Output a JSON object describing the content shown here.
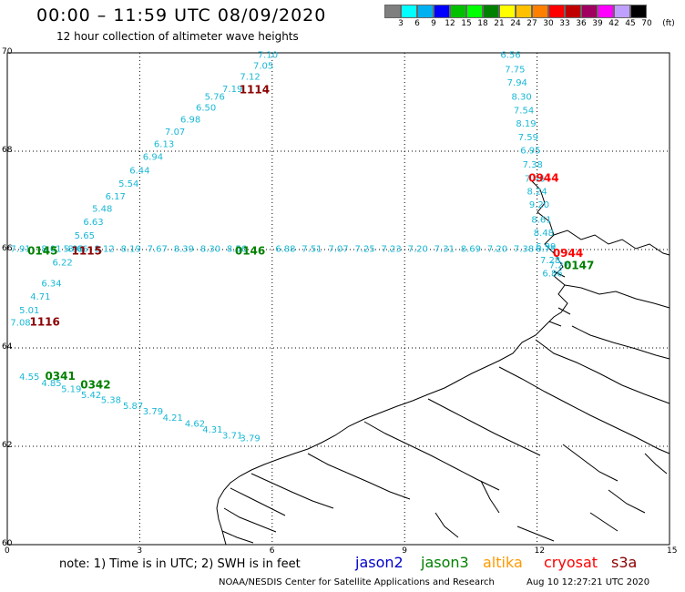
{
  "header": {
    "title": "00:00 – 11:59 UTC 08/09/2020",
    "subtitle": "12 hour collection of altimeter wave heights"
  },
  "color_scale": {
    "unit": "(ft)",
    "swatches": [
      {
        "label": "3",
        "color": "#7f7f7f"
      },
      {
        "label": "6",
        "color": "#00ffff"
      },
      {
        "label": "9",
        "color": "#00b0f0"
      },
      {
        "label": "12",
        "color": "#0000ff"
      },
      {
        "label": "15",
        "color": "#00c000"
      },
      {
        "label": "18",
        "color": "#00ff00"
      },
      {
        "label": "21",
        "color": "#008000"
      },
      {
        "label": "24",
        "color": "#ffff00"
      },
      {
        "label": "27",
        "color": "#ffc000"
      },
      {
        "label": "30",
        "color": "#ff8000"
      },
      {
        "label": "33",
        "color": "#ff0000"
      },
      {
        "label": "36",
        "color": "#c00000"
      },
      {
        "label": "39",
        "color": "#a00060"
      },
      {
        "label": "42",
        "color": "#ff00ff"
      },
      {
        "label": "45",
        "color": "#c0a0ff"
      },
      {
        "label": "70",
        "color": "#000000"
      }
    ]
  },
  "axes": {
    "lon_ticks": [
      "0",
      "3",
      "6",
      "9",
      "12",
      "15"
    ],
    "lat_ticks": [
      "70",
      "68",
      "66",
      "64",
      "62",
      "60"
    ],
    "lon_range": [
      0,
      15
    ],
    "lat_range": [
      60,
      70
    ]
  },
  "colors": {
    "swh": "#19b8d6",
    "jason3_time": "#008000",
    "cryosat_time": "#ff0000",
    "s3a_time": "#8b0000"
  },
  "tracks": {
    "track_a": [
      {
        "lon": 5.9,
        "lat": 69.9,
        "v": "7.10"
      },
      {
        "lon": 5.8,
        "lat": 69.68,
        "v": "7.05"
      },
      {
        "lon": 5.5,
        "lat": 69.45,
        "v": "7.12"
      },
      {
        "lon": 5.1,
        "lat": 69.2,
        "v": "7.19"
      },
      {
        "lon": 4.7,
        "lat": 69.05,
        "v": "5.76"
      },
      {
        "lon": 4.5,
        "lat": 68.82,
        "v": "6.50"
      },
      {
        "lon": 4.15,
        "lat": 68.58,
        "v": "6.98"
      },
      {
        "lon": 3.8,
        "lat": 68.33,
        "v": "7.07"
      },
      {
        "lon": 3.55,
        "lat": 68.08,
        "v": "6.13"
      },
      {
        "lon": 3.3,
        "lat": 67.82,
        "v": "6.94"
      },
      {
        "lon": 3.0,
        "lat": 67.55,
        "v": "6.44"
      },
      {
        "lon": 2.75,
        "lat": 67.28,
        "v": "5.54"
      },
      {
        "lon": 2.45,
        "lat": 67.02,
        "v": "6.17"
      },
      {
        "lon": 2.15,
        "lat": 66.77,
        "v": "5.48"
      },
      {
        "lon": 1.95,
        "lat": 66.5,
        "v": "6.63"
      },
      {
        "lon": 1.75,
        "lat": 66.22,
        "v": "5.65"
      },
      {
        "lon": 1.5,
        "lat": 65.95,
        "v": "5.98"
      },
      {
        "lon": 1.25,
        "lat": 65.68,
        "v": "6.22"
      },
      {
        "lon": 1.0,
        "lat": 65.25,
        "v": "6.34"
      },
      {
        "lon": 0.75,
        "lat": 64.98,
        "v": "4.71"
      },
      {
        "lon": 0.5,
        "lat": 64.7,
        "v": "5.01"
      },
      {
        "lon": 0.3,
        "lat": 64.45,
        "v": "7.08"
      }
    ],
    "track_b": [
      {
        "lon": 11.4,
        "lat": 69.9,
        "v": "6.56"
      },
      {
        "lon": 11.5,
        "lat": 69.6,
        "v": "7.75"
      },
      {
        "lon": 11.55,
        "lat": 69.33,
        "v": "7.94"
      },
      {
        "lon": 11.65,
        "lat": 69.05,
        "v": "8.30"
      },
      {
        "lon": 11.7,
        "lat": 68.77,
        "v": "7.54"
      },
      {
        "lon": 11.75,
        "lat": 68.5,
        "v": "8.19"
      },
      {
        "lon": 11.8,
        "lat": 68.22,
        "v": "7.59"
      },
      {
        "lon": 11.85,
        "lat": 67.95,
        "v": "6.95"
      },
      {
        "lon": 11.9,
        "lat": 67.67,
        "v": "7.38"
      },
      {
        "lon": 11.95,
        "lat": 67.38,
        "v": "7.46"
      },
      {
        "lon": 12.0,
        "lat": 67.12,
        "v": "8.24"
      },
      {
        "lon": 12.05,
        "lat": 66.85,
        "v": "9.20"
      },
      {
        "lon": 12.1,
        "lat": 66.55,
        "v": "8.61"
      },
      {
        "lon": 12.15,
        "lat": 66.28,
        "v": "8.48"
      },
      {
        "lon": 12.2,
        "lat": 66.0,
        "v": "6.99"
      },
      {
        "lon": 12.3,
        "lat": 65.72,
        "v": "7.28"
      },
      {
        "lon": 12.35,
        "lat": 65.45,
        "v": "6.86"
      }
    ],
    "track_c": [
      {
        "lon": 0.3,
        "lat": 65.95,
        "v": "7.91"
      },
      {
        "lon": 1.0,
        "lat": 65.95,
        "v": "8.01"
      },
      {
        "lon": 1.6,
        "lat": 65.95,
        "v": "8.66"
      },
      {
        "lon": 2.2,
        "lat": 65.95,
        "v": "8.12"
      },
      {
        "lon": 2.8,
        "lat": 65.95,
        "v": "8.19"
      },
      {
        "lon": 3.4,
        "lat": 65.95,
        "v": "7.67"
      },
      {
        "lon": 4.0,
        "lat": 65.95,
        "v": "8.39"
      },
      {
        "lon": 4.6,
        "lat": 65.95,
        "v": "8.30"
      },
      {
        "lon": 5.2,
        "lat": 65.95,
        "v": "8.56"
      },
      {
        "lon": 6.3,
        "lat": 65.95,
        "v": "6.88"
      },
      {
        "lon": 6.9,
        "lat": 65.95,
        "v": "7.51"
      },
      {
        "lon": 7.5,
        "lat": 65.95,
        "v": "7.07"
      },
      {
        "lon": 8.1,
        "lat": 65.95,
        "v": "7.25"
      },
      {
        "lon": 8.7,
        "lat": 65.95,
        "v": "7.23"
      },
      {
        "lon": 9.3,
        "lat": 65.95,
        "v": "7.20"
      },
      {
        "lon": 9.9,
        "lat": 65.95,
        "v": "7.31"
      },
      {
        "lon": 10.5,
        "lat": 65.95,
        "v": "8.69"
      },
      {
        "lon": 11.1,
        "lat": 65.95,
        "v": "7.20"
      },
      {
        "lon": 11.7,
        "lat": 65.95,
        "v": "7.38"
      },
      {
        "lon": 12.2,
        "lat": 65.95,
        "v": "6.75"
      },
      {
        "lon": 12.5,
        "lat": 65.62,
        "v": "7.27"
      }
    ],
    "track_d": [
      {
        "lon": 0.5,
        "lat": 63.35,
        "v": "4.55"
      },
      {
        "lon": 1.0,
        "lat": 63.22,
        "v": "4.85"
      },
      {
        "lon": 1.45,
        "lat": 63.1,
        "v": "5.19"
      },
      {
        "lon": 1.9,
        "lat": 62.98,
        "v": "5.42"
      },
      {
        "lon": 2.35,
        "lat": 62.88,
        "v": "5.38"
      },
      {
        "lon": 2.85,
        "lat": 62.76,
        "v": "5.87"
      },
      {
        "lon": 3.3,
        "lat": 62.65,
        "v": "3.79"
      },
      {
        "lon": 3.75,
        "lat": 62.52,
        "v": "4.21"
      },
      {
        "lon": 4.25,
        "lat": 62.4,
        "v": "4.62"
      },
      {
        "lon": 4.65,
        "lat": 62.28,
        "v": "4.31"
      },
      {
        "lon": 5.1,
        "lat": 62.16,
        "v": "3.71"
      },
      {
        "lon": 5.5,
        "lat": 62.1,
        "v": "3.79"
      }
    ]
  },
  "time_labels": [
    {
      "lon": 5.6,
      "lat": 69.18,
      "t": "1114",
      "sat": "s3a"
    },
    {
      "lon": 12.15,
      "lat": 67.38,
      "t": "0944",
      "sat": "cryosat"
    },
    {
      "lon": 12.7,
      "lat": 65.85,
      "t": "0944",
      "sat": "cryosat"
    },
    {
      "lon": 1.8,
      "lat": 65.9,
      "t": "1115",
      "sat": "s3a"
    },
    {
      "lon": 0.85,
      "lat": 64.45,
      "t": "1116",
      "sat": "s3a"
    },
    {
      "lon": 0.8,
      "lat": 65.9,
      "t": "0145",
      "sat": "jason3"
    },
    {
      "lon": 5.5,
      "lat": 65.9,
      "t": "0146",
      "sat": "jason3"
    },
    {
      "lon": 12.95,
      "lat": 65.6,
      "t": "0147",
      "sat": "jason3"
    },
    {
      "lon": 1.2,
      "lat": 63.35,
      "t": "0341",
      "sat": "jason3"
    },
    {
      "lon": 2.0,
      "lat": 63.18,
      "t": "0342",
      "sat": "jason3"
    }
  ],
  "footer": {
    "note": "note:  1) Time is in UTC;  2) SWH is in feet",
    "satellites": [
      {
        "name": "jason2",
        "color": "#0000cc"
      },
      {
        "name": "jason3",
        "color": "#008000"
      },
      {
        "name": "altika",
        "color": "#ff9900"
      },
      {
        "name": "cryosat",
        "color": "#ff0000"
      },
      {
        "name": "s3a",
        "color": "#8b0000"
      }
    ],
    "credit": "NOAA/NESDIS Center for Satellite Applications and Research",
    "timestamp": "Aug 10 12:27:21 UTC 2020"
  }
}
